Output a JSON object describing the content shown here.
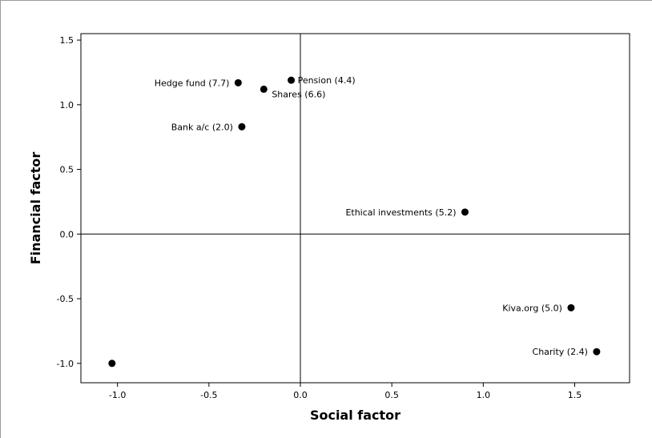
{
  "chart_data": {
    "type": "scatter",
    "xlabel": "Social factor",
    "ylabel": "Financial factor",
    "xlim": [
      -1.2,
      1.8
    ],
    "ylim": [
      -1.15,
      1.55
    ],
    "x_ticks": [
      -1.0,
      -0.5,
      0.0,
      0.5,
      1.0,
      1.5
    ],
    "x_tick_labels": [
      "-1.0",
      "-0.5",
      "0.0",
      "0.5",
      "1.0",
      "1.5"
    ],
    "y_ticks": [
      -1.0,
      -0.5,
      0.0,
      0.5,
      1.0,
      1.5
    ],
    "y_tick_labels": [
      "-1.0",
      "-0.5",
      "0.0",
      "0.5",
      "1.0",
      "1.5"
    ],
    "reference_lines": {
      "x": 0,
      "y": 0
    },
    "grid": false,
    "points": [
      {
        "label": "Hedge fund (7.7)",
        "x": -0.34,
        "y": 1.17,
        "label_side": "left"
      },
      {
        "label": "Pension (4.4)",
        "x": -0.05,
        "y": 1.19,
        "label_side": "right"
      },
      {
        "label": "Shares (6.6)",
        "x": -0.2,
        "y": 1.12,
        "label_side": "below-right"
      },
      {
        "label": "Bank a/c (2.0)",
        "x": -0.32,
        "y": 0.83,
        "label_side": "left"
      },
      {
        "label": "Ethical investments (5.2)",
        "x": 0.9,
        "y": 0.17,
        "label_side": "left"
      },
      {
        "label": "Kiva.org (5.0)",
        "x": 1.48,
        "y": -0.57,
        "label_side": "left"
      },
      {
        "label": "Charity (2.4)",
        "x": 1.62,
        "y": -0.91,
        "label_side": "left"
      },
      {
        "label": "",
        "x": -1.03,
        "y": -1.0,
        "label_side": "none"
      }
    ]
  }
}
